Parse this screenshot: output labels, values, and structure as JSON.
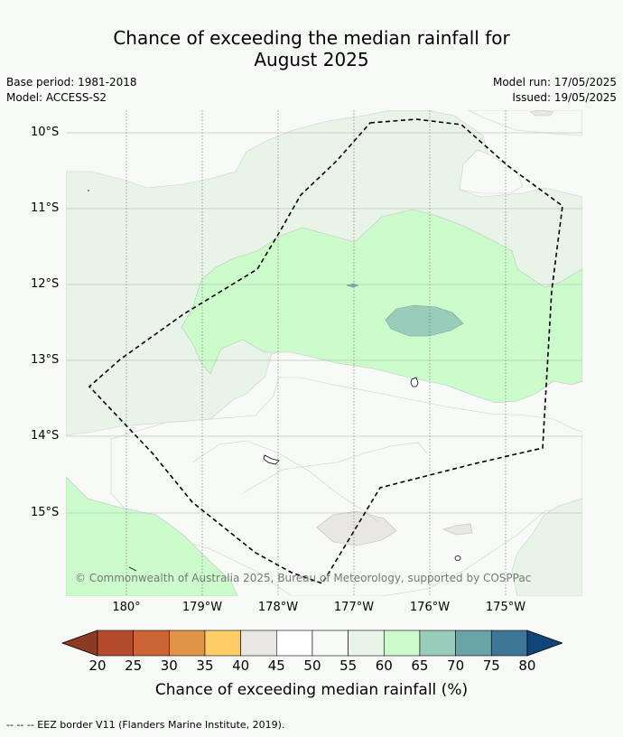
{
  "title_line1": "Chance of exceeding the median rainfall for",
  "title_line2": "August 2025",
  "base_period": "Base period: 1981-2018",
  "model": "Model: ACCESS-S2",
  "model_run": "Model run: 17/05/2025",
  "issued": "Issued: 19/05/2025",
  "lat_labels": [
    "10°S",
    "11°S",
    "12°S",
    "13°S",
    "14°S",
    "15°S"
  ],
  "lon_labels": [
    "180°",
    "179°W",
    "178°W",
    "177°W",
    "176°W",
    "175°W"
  ],
  "copyright": "© Commonwealth of Australia 2025, Bureau of Meteorology, supported by COSPPac",
  "colorbar": {
    "ticks": [
      "20",
      "25",
      "30",
      "35",
      "40",
      "45",
      "50",
      "55",
      "60",
      "65",
      "70",
      "75",
      "80"
    ],
    "colors": [
      "#8c3a22",
      "#b34a2a",
      "#cc6535",
      "#e09448",
      "#ffcc66",
      "#e9e7e4",
      "#ffffff",
      "#f8faf8",
      "#e9f4e8",
      "#ccfccc",
      "#99ccbb",
      "#6aa4a7",
      "#3e7696",
      "#10457a"
    ],
    "label": "Chance of exceeding median rainfall (%)"
  },
  "footer": "--  --  -- EEZ border V11 (Flanders Marine Institute, 2019)."
}
